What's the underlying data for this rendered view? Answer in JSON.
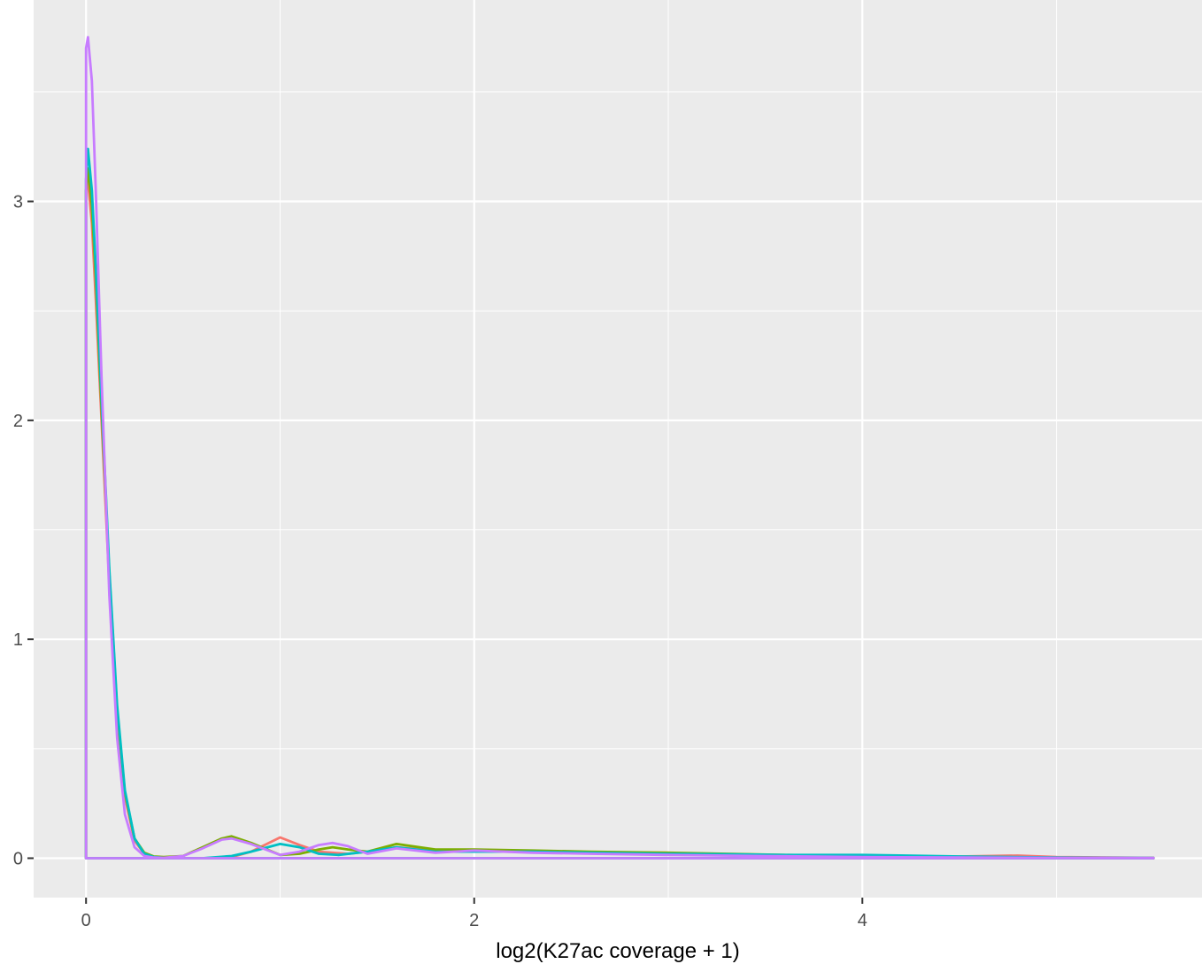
{
  "chart_data": {
    "type": "line",
    "title": "",
    "xlabel": "log2(K27ac coverage + 1)",
    "ylabel": "",
    "xlim": [
      -0.27,
      5.75
    ],
    "ylim": [
      -0.18,
      3.92
    ],
    "x_ticks": [
      0,
      2,
      4
    ],
    "x_tick_labels": [
      "0",
      "2",
      "4"
    ],
    "y_ticks": [
      0,
      1,
      2,
      3
    ],
    "y_tick_labels": [
      "0",
      "1",
      "2",
      "3"
    ],
    "grid": true,
    "legend": "none",
    "series": [
      {
        "color": "#F8766D",
        "x": [
          0,
          0.01,
          0.03,
          0.05,
          0.08,
          0.12,
          0.16,
          0.2,
          0.25,
          0.3,
          0.35,
          0.4,
          0.5,
          0.6,
          0.75,
          0.85,
          1.0,
          1.1,
          1.2,
          1.27,
          1.35,
          1.45,
          1.6,
          1.8,
          2.0,
          2.3,
          2.6,
          3.0,
          3.2,
          3.5,
          4.0,
          4.5,
          4.8,
          5.0,
          5.5
        ],
        "y": [
          3.05,
          3.09,
          2.9,
          2.55,
          2.0,
          1.25,
          0.65,
          0.28,
          0.08,
          0.02,
          0.005,
          0.002,
          0.0,
          0.0,
          0.005,
          0.03,
          0.095,
          0.06,
          0.03,
          0.025,
          0.02,
          0.03,
          0.05,
          0.035,
          0.035,
          0.03,
          0.025,
          0.025,
          0.015,
          0.01,
          0.005,
          0.008,
          0.012,
          0.005,
          0.002
        ]
      },
      {
        "color": "#7CAE00",
        "x": [
          0,
          0.01,
          0.03,
          0.05,
          0.08,
          0.12,
          0.16,
          0.2,
          0.25,
          0.3,
          0.35,
          0.4,
          0.5,
          0.6,
          0.7,
          0.75,
          0.85,
          1.0,
          1.1,
          1.2,
          1.27,
          1.35,
          1.45,
          1.6,
          1.8,
          2.0,
          2.3,
          2.6,
          3.0,
          3.3,
          3.6,
          4.0,
          4.5,
          5.0,
          5.5
        ],
        "y": [
          3.05,
          3.15,
          2.98,
          2.65,
          2.05,
          1.3,
          0.68,
          0.3,
          0.09,
          0.025,
          0.008,
          0.005,
          0.01,
          0.05,
          0.09,
          0.1,
          0.07,
          0.015,
          0.02,
          0.04,
          0.05,
          0.04,
          0.03,
          0.065,
          0.04,
          0.04,
          0.035,
          0.03,
          0.025,
          0.02,
          0.015,
          0.01,
          0.006,
          0.003,
          0.001
        ]
      },
      {
        "color": "#00BFC4",
        "x": [
          0,
          0.01,
          0.03,
          0.05,
          0.08,
          0.12,
          0.16,
          0.2,
          0.25,
          0.3,
          0.35,
          0.4,
          0.5,
          0.6,
          0.75,
          0.85,
          1.0,
          1.1,
          1.2,
          1.3,
          1.45,
          1.6,
          1.8,
          2.0,
          2.3,
          2.6,
          3.0,
          3.3,
          3.6,
          4.0,
          4.5,
          5.0,
          5.5
        ],
        "y": [
          3.1,
          3.24,
          3.05,
          2.7,
          2.1,
          1.32,
          0.7,
          0.31,
          0.09,
          0.02,
          0.005,
          0.002,
          0.0,
          0.0,
          0.01,
          0.03,
          0.065,
          0.05,
          0.02,
          0.015,
          0.03,
          0.05,
          0.03,
          0.03,
          0.03,
          0.025,
          0.02,
          0.018,
          0.015,
          0.015,
          0.008,
          0.003,
          0.001
        ]
      },
      {
        "color": "#C77CFF",
        "x": [
          0,
          0.01,
          0.03,
          0.05,
          0.08,
          0.12,
          0.16,
          0.2,
          0.25,
          0.3,
          0.35,
          0.4,
          0.5,
          0.6,
          0.7,
          0.75,
          0.85,
          1.0,
          1.1,
          1.2,
          1.27,
          1.35,
          1.45,
          1.6,
          1.8,
          2.0,
          2.3,
          2.6,
          3.0,
          3.5,
          4.0,
          4.5,
          5.0,
          5.5
        ],
        "y": [
          3.7,
          3.75,
          3.55,
          3.05,
          2.2,
          1.2,
          0.55,
          0.2,
          0.05,
          0.01,
          0.003,
          0.002,
          0.01,
          0.045,
          0.085,
          0.09,
          0.065,
          0.015,
          0.03,
          0.06,
          0.07,
          0.055,
          0.02,
          0.045,
          0.025,
          0.035,
          0.025,
          0.02,
          0.015,
          0.01,
          0.005,
          0.003,
          0.002,
          0.001
        ]
      }
    ]
  }
}
